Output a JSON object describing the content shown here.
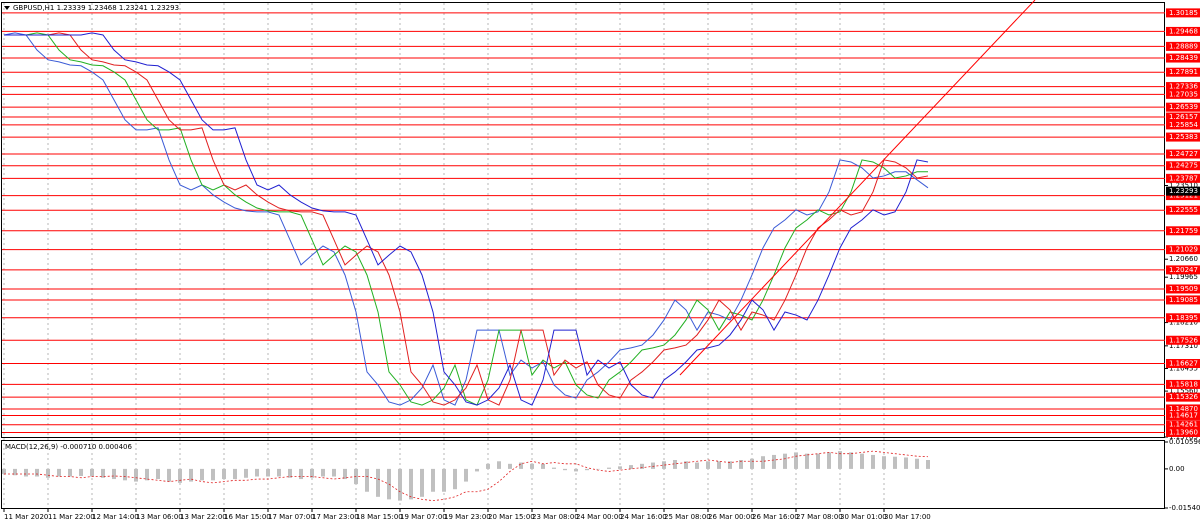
{
  "chart_data": [
    {
      "type": "line",
      "title": "GBPUSD,H1 1.23339 1.23468 1.23241 1.23293",
      "categories": [
        "11 Mar 2020",
        null,
        null,
        null,
        "11 Mar 22:00",
        null,
        null,
        null,
        "12 Mar 14:00",
        null,
        null,
        null,
        "13 Mar 06:00",
        null,
        null,
        null,
        "13 Mar 22:00",
        null,
        null,
        null,
        "16 Mar 15:00",
        null,
        null,
        null,
        "17 Mar 07:00",
        null,
        null,
        null,
        "17 Mar 23:00",
        null,
        null,
        null,
        "18 Mar 15:00",
        null,
        null,
        null,
        "19 Mar 07:00",
        null,
        null,
        null,
        "19 Mar 23:00",
        null,
        null,
        null,
        "20 Mar 15:00",
        null,
        null,
        null,
        "23 Mar 08:00",
        null,
        null,
        null,
        "24 Mar 00:00",
        null,
        null,
        null,
        "24 Mar 16:00",
        null,
        null,
        null,
        "25 Mar 08:00",
        null,
        null,
        null,
        "26 Mar 00:00",
        null,
        null,
        null,
        "26 Mar 16:00",
        null,
        null,
        null,
        "27 Mar 08:00",
        null,
        null,
        null,
        "30 Mar 01:00",
        null,
        null,
        null,
        "30 Mar 17:00",
        null,
        null,
        null,
        null
      ],
      "series": [
        {
          "color": "#3b5bd6",
          "values": [
            1.2933,
            1.2941,
            1.2933,
            1.2875,
            1.2837,
            1.2829,
            1.2817,
            1.2814,
            1.279,
            1.2759,
            1.2682,
            1.2605,
            1.2566,
            1.2566,
            1.2574,
            1.245,
            1.2353,
            1.2334,
            1.2353,
            1.2315,
            1.2287,
            1.2264,
            1.2253,
            1.2249,
            1.2249,
            1.2237,
            1.2141,
            1.2044,
            1.2082,
            1.2117,
            1.2094,
            1.2005,
            1.1862,
            1.163,
            1.158,
            1.1514,
            1.1502,
            1.1522,
            1.1568,
            1.1657,
            1.1522,
            1.1502,
            1.1599,
            1.1792,
            1.1792,
            1.1792,
            1.1618,
            1.1676,
            1.1645,
            1.1669,
            1.158,
            1.1541,
            1.1529,
            1.1599,
            1.163,
            1.1669,
            1.1715,
            1.1723,
            1.1734,
            1.1773,
            1.1831,
            1.1908,
            1.187,
            1.1792,
            1.1862,
            1.185,
            1.1831,
            1.1908,
            1.2005,
            1.211,
            1.2187,
            1.2218,
            1.2257,
            1.2237,
            1.2249,
            1.2326,
            1.245,
            1.2442,
            1.2419,
            1.238,
            1.2388,
            1.2404,
            1.2404,
            1.2373,
            1.2342
          ]
        },
        {
          "color": "#22b022",
          "values": [
            1.2933,
            1.2933,
            1.2933,
            1.2941,
            1.2933,
            1.2875,
            1.2837,
            1.2829,
            1.2817,
            1.2814,
            1.279,
            1.2759,
            1.2682,
            1.2605,
            1.2566,
            1.2566,
            1.2574,
            1.245,
            1.2353,
            1.2334,
            1.2353,
            1.2315,
            1.2287,
            1.2264,
            1.2253,
            1.2249,
            1.2249,
            1.2237,
            1.2141,
            1.2044,
            1.2082,
            1.2117,
            1.2094,
            1.2005,
            1.1862,
            1.163,
            1.158,
            1.1514,
            1.1502,
            1.1522,
            1.1568,
            1.1657,
            1.1522,
            1.1502,
            1.1599,
            1.1792,
            1.1792,
            1.1792,
            1.1618,
            1.1676,
            1.1645,
            1.1669,
            1.158,
            1.1541,
            1.1529,
            1.1599,
            1.163,
            1.1669,
            1.1715,
            1.1723,
            1.1734,
            1.1773,
            1.1831,
            1.1908,
            1.187,
            1.1792,
            1.1862,
            1.185,
            1.1831,
            1.1908,
            1.2005,
            1.211,
            1.2187,
            1.2218,
            1.2257,
            1.2237,
            1.2249,
            1.2326,
            1.245,
            1.2442,
            1.2419,
            1.238,
            1.2388,
            1.2404,
            1.2404
          ]
        },
        {
          "color": "#e02020",
          "values": [
            1.2933,
            1.2933,
            1.2933,
            1.2933,
            1.2933,
            1.2941,
            1.2933,
            1.2875,
            1.2837,
            1.2829,
            1.2817,
            1.2814,
            1.279,
            1.2759,
            1.2682,
            1.2605,
            1.2566,
            1.2566,
            1.2574,
            1.245,
            1.2353,
            1.2334,
            1.2353,
            1.2315,
            1.2287,
            1.2264,
            1.2253,
            1.2249,
            1.2249,
            1.2237,
            1.2141,
            1.2044,
            1.2082,
            1.2117,
            1.2094,
            1.2005,
            1.1862,
            1.163,
            1.158,
            1.1514,
            1.1502,
            1.1522,
            1.1568,
            1.1657,
            1.1522,
            1.1502,
            1.1599,
            1.1792,
            1.1792,
            1.1792,
            1.1618,
            1.1676,
            1.1645,
            1.1669,
            1.158,
            1.1541,
            1.1529,
            1.1599,
            1.163,
            1.1669,
            1.1715,
            1.1723,
            1.1734,
            1.1773,
            1.1831,
            1.1908,
            1.187,
            1.1792,
            1.1862,
            1.185,
            1.1831,
            1.1908,
            1.2005,
            1.211,
            1.2187,
            1.2218,
            1.2257,
            1.2237,
            1.2249,
            1.2326,
            1.245,
            1.2442,
            1.2419,
            1.238,
            1.2388
          ]
        },
        {
          "color": "#2020d0",
          "values": [
            1.2933,
            1.2933,
            1.2933,
            1.2933,
            1.2933,
            1.2933,
            1.2933,
            1.2933,
            1.2941,
            1.2933,
            1.2875,
            1.2837,
            1.2829,
            1.2817,
            1.2814,
            1.279,
            1.2759,
            1.2682,
            1.2605,
            1.2566,
            1.2566,
            1.2574,
            1.245,
            1.2353,
            1.2334,
            1.2353,
            1.2315,
            1.2287,
            1.2264,
            1.2253,
            1.2249,
            1.2249,
            1.2237,
            1.2141,
            1.2044,
            1.2082,
            1.2117,
            1.2094,
            1.2005,
            1.1862,
            1.163,
            1.158,
            1.1514,
            1.1502,
            1.1522,
            1.1568,
            1.1657,
            1.1522,
            1.1502,
            1.1599,
            1.1792,
            1.1792,
            1.1792,
            1.1618,
            1.1676,
            1.1645,
            1.1669,
            1.158,
            1.1541,
            1.1529,
            1.1599,
            1.163,
            1.1669,
            1.1715,
            1.1723,
            1.1734,
            1.1773,
            1.1831,
            1.1908,
            1.187,
            1.1792,
            1.1862,
            1.185,
            1.1831,
            1.1908,
            1.2005,
            1.211,
            1.2187,
            1.2218,
            1.2257,
            1.2237,
            1.2249,
            1.2326,
            1.245,
            1.2442
          ]
        }
      ],
      "ylim": [
        1.13785,
        1.3049
      ],
      "yticks": [
        {
          "value": 1.2351,
          "label": "1.23510"
        },
        {
          "value": 1.2066,
          "label": "1.20660"
        },
        1.19965,
        {
          "value": 1.1821,
          "label": "1.18210"
        },
        {
          "value": 1.1731,
          "label": "1.17310"
        },
        1.16435,
        {
          "value": 1.1556,
          "label": "1.15560"
        },
        1.13785
      ],
      "levels": [
        1.30185,
        1.29468,
        1.28889,
        1.28439,
        1.27891,
        1.27336,
        1.27035,
        1.26539,
        1.26157,
        1.25854,
        1.25383,
        1.24727,
        1.24275,
        1.23787,
        1.23121,
        1.22555,
        1.21759,
        1.21029,
        1.20247,
        1.19509,
        1.19085,
        1.18395,
        1.17526,
        1.16627,
        1.15818,
        1.15326,
        {
          "value": 1.1487,
          "label": "1.14870"
        },
        1.14617,
        1.14261,
        {
          "value": 1.1396,
          "label": "1.13960"
        }
      ],
      "level_color": "#ff0000",
      "last_price": 1.23293,
      "grid": true
    },
    {
      "type": "bar",
      "title": "MACD(12,26,9) -0.000710 0.000406",
      "series": [
        {
          "color": "#c0c0c0",
          "values": [
            -0.002,
            -0.0025,
            -0.003,
            -0.003,
            -0.0035,
            -0.003,
            -0.003,
            -0.0028,
            -0.003,
            -0.0035,
            -0.004,
            -0.0045,
            -0.005,
            -0.0045,
            -0.004,
            -0.005,
            -0.0055,
            -0.005,
            -0.0045,
            -0.0045,
            -0.004,
            -0.004,
            -0.0035,
            -0.003,
            -0.003,
            -0.003,
            -0.0035,
            -0.004,
            -0.0035,
            -0.003,
            -0.003,
            -0.004,
            -0.006,
            -0.009,
            -0.011,
            -0.012,
            -0.0125,
            -0.012,
            -0.011,
            -0.009,
            -0.009,
            -0.008,
            -0.005,
            -0.001,
            0.002,
            0.003,
            0.002,
            0.0025,
            0.002,
            0.002,
            0.0005,
            -0.0005,
            -0.001,
            -0.0005,
            0,
            0.0005,
            0.001,
            0.0015,
            0.002,
            0.0025,
            0.003,
            0.0035,
            0.003,
            0.0025,
            0.003,
            0.003,
            0.003,
            0.0035,
            0.004,
            0.005,
            0.0055,
            0.006,
            0.0065,
            0.006,
            0.006,
            0.0065,
            0.007,
            0.0065,
            0.006,
            0.0055,
            0.005,
            0.0048,
            0.0045,
            0.004,
            0.0035
          ]
        },
        {
          "color": "#e02020",
          "type": "line",
          "values": [
            -0.002,
            -0.002,
            -0.002,
            -0.002,
            -0.0025,
            -0.003,
            -0.003,
            -0.0035,
            -0.003,
            -0.003,
            -0.0028,
            -0.003,
            -0.0035,
            -0.004,
            -0.0045,
            -0.005,
            -0.0045,
            -0.004,
            -0.005,
            -0.0055,
            -0.005,
            -0.0045,
            -0.0045,
            -0.004,
            -0.004,
            -0.0035,
            -0.003,
            -0.003,
            -0.003,
            -0.0035,
            -0.004,
            -0.0035,
            -0.003,
            -0.003,
            -0.004,
            -0.006,
            -0.009,
            -0.011,
            -0.012,
            -0.0125,
            -0.012,
            -0.011,
            -0.009,
            -0.009,
            -0.008,
            -0.005,
            -0.001,
            0.002,
            0.003,
            0.002,
            0.0025,
            0.002,
            0.002,
            0.0005,
            -0.0005,
            -0.001,
            -0.0005,
            0,
            0.0005,
            0.001,
            0.0015,
            0.002,
            0.0025,
            0.003,
            0.0035,
            0.003,
            0.0025,
            0.003,
            0.003,
            0.003,
            0.0035,
            0.004,
            0.005,
            0.0055,
            0.006,
            0.0065,
            0.006,
            0.006,
            0.0065,
            0.007,
            0.0065,
            0.006,
            0.0055,
            0.005,
            0.0048
          ]
        }
      ],
      "ylim": [
        -0.015404,
        0.010596
      ],
      "yticks": [
        0.010596,
        {
          "value": 0,
          "label": "0.00"
        },
        -0.015404
      ]
    }
  ]
}
